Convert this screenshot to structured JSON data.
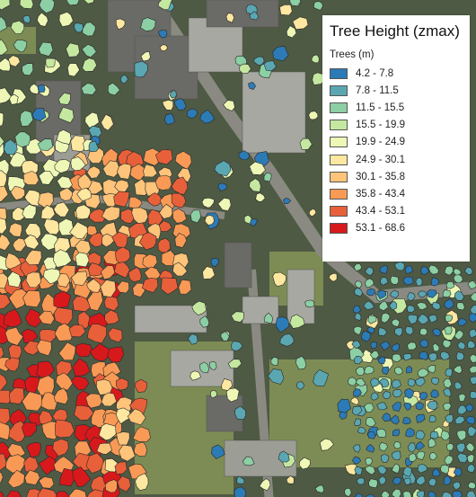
{
  "legend": {
    "title": "Tree Height (zmax)",
    "subtitle": "Trees (m)",
    "classes": [
      {
        "label": "4.2 - 7.8",
        "color": "#2c7bb6"
      },
      {
        "label": "7.8 - 11.5",
        "color": "#5aa7b2"
      },
      {
        "label": "11.5 - 15.5",
        "color": "#8ccfa4"
      },
      {
        "label": "15.5 - 19.9",
        "color": "#c4e8a0"
      },
      {
        "label": "19.9 - 24.9",
        "color": "#eef7b5"
      },
      {
        "label": "24.9 - 30.1",
        "color": "#fee7a0"
      },
      {
        "label": "30.1 - 35.8",
        "color": "#fdc47a"
      },
      {
        "label": "35.8 - 43.4",
        "color": "#f89a55"
      },
      {
        "label": "43.4 - 53.1",
        "color": "#e8603a"
      },
      {
        "label": "53.1 - 68.6",
        "color": "#d7191c"
      }
    ]
  },
  "map": {
    "basemap_colors": {
      "vegetation": "#4e5a44",
      "roof_dark": "#6a6a66",
      "roof_light": "#a8a8a2",
      "lawn": "#7d8c55",
      "road": "#8a8a82",
      "paved": "#9c9d95"
    }
  }
}
